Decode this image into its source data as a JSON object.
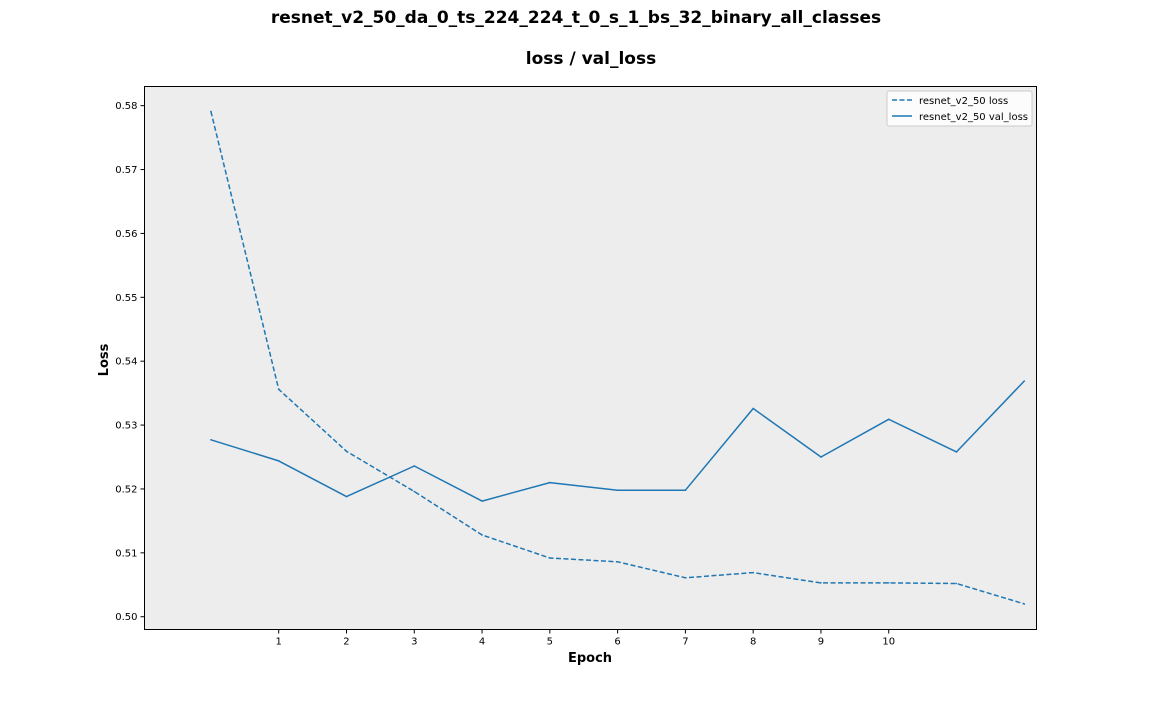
{
  "chart_data": {
    "type": "line",
    "suptitle": "resnet_v2_50_da_0_ts_224_224_t_0_s_1_bs_32_binary_all_classes",
    "title": "loss / val_loss",
    "xlabel": "Epoch",
    "ylabel": "Loss",
    "xlim": [
      -0.98,
      12.18
    ],
    "ylim": [
      0.498,
      0.583
    ],
    "xticks": [
      1,
      2,
      3,
      4,
      5,
      6,
      7,
      8,
      9,
      10
    ],
    "yticks": [
      0.5,
      0.51,
      0.52,
      0.53,
      0.54,
      0.55,
      0.56,
      0.57,
      0.58
    ],
    "ytick_labels": [
      "0.50",
      "0.51",
      "0.52",
      "0.53",
      "0.54",
      "0.55",
      "0.56",
      "0.57",
      "0.58"
    ],
    "grid": false,
    "background": "#ededed",
    "legend_position": "upper right",
    "series": [
      {
        "name": "resnet_v2_50 loss",
        "style": "dashed",
        "color": "#1f77b4",
        "x": [
          0,
          1,
          2,
          3,
          4,
          5,
          6,
          7,
          8,
          9,
          10,
          11,
          12
        ],
        "y": [
          0.5791,
          0.5356,
          0.5259,
          0.5196,
          0.5128,
          0.5092,
          0.5086,
          0.5061,
          0.5069,
          0.5053,
          0.5053,
          0.5052,
          0.502
        ]
      },
      {
        "name": "resnet_v2_50 val_loss",
        "style": "solid",
        "color": "#1f77b4",
        "x": [
          0,
          1,
          2,
          3,
          4,
          5,
          6,
          7,
          8,
          9,
          10,
          11,
          12
        ],
        "y": [
          0.5277,
          0.5244,
          0.5188,
          0.5236,
          0.5181,
          0.521,
          0.5198,
          0.5198,
          0.5326,
          0.525,
          0.5309,
          0.5258,
          0.5369
        ]
      }
    ]
  }
}
